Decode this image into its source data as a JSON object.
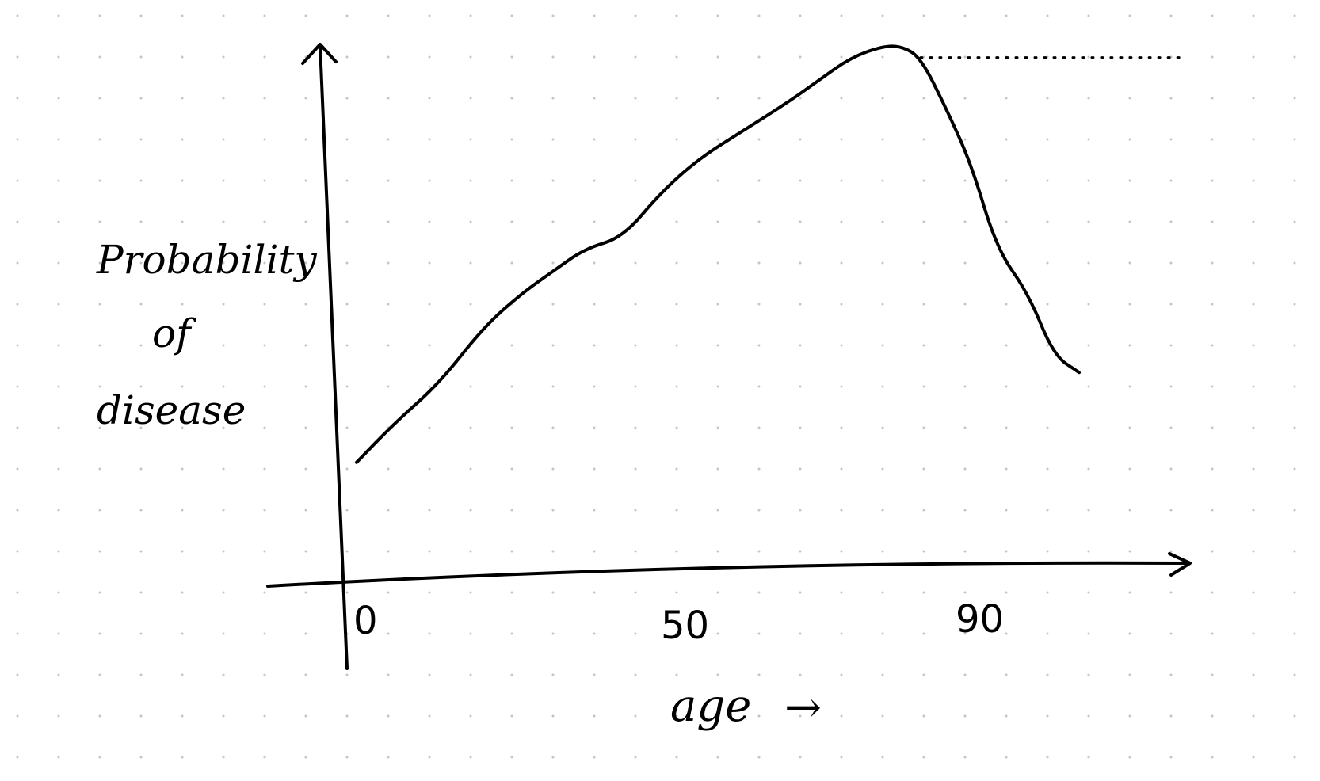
{
  "chart_data": {
    "type": "line",
    "title": "",
    "ylabel_lines": [
      "Probability",
      "of",
      "disease"
    ],
    "xlabel": "age",
    "xlabel_arrow": "→",
    "x_ticks": [
      {
        "value": 0,
        "label": "0"
      },
      {
        "value": 50,
        "label": "50"
      },
      {
        "value": 90,
        "label": "90"
      }
    ],
    "xlim": [
      0,
      130
    ],
    "ylim": [
      0,
      1
    ],
    "grid": false,
    "y_ticks_shown": false,
    "series": [
      {
        "line_style": "solid",
        "x": [
          2,
          8,
          15,
          22,
          28,
          33,
          38,
          44,
          50,
          56,
          63,
          70,
          75,
          80,
          85,
          88,
          91,
          95,
          99,
          103,
          108,
          112,
          116
        ],
        "y": [
          0.22,
          0.29,
          0.36,
          0.46,
          0.52,
          0.56,
          0.6,
          0.62,
          0.7,
          0.76,
          0.81,
          0.86,
          0.9,
          0.94,
          0.96,
          0.96,
          0.94,
          0.85,
          0.75,
          0.6,
          0.52,
          0.41,
          0.38
        ]
      },
      {
        "line_style": "dotted",
        "x": [
          91,
          100,
          110,
          120,
          132
        ],
        "y": [
          0.94,
          0.94,
          0.94,
          0.94,
          0.94
        ]
      }
    ]
  }
}
